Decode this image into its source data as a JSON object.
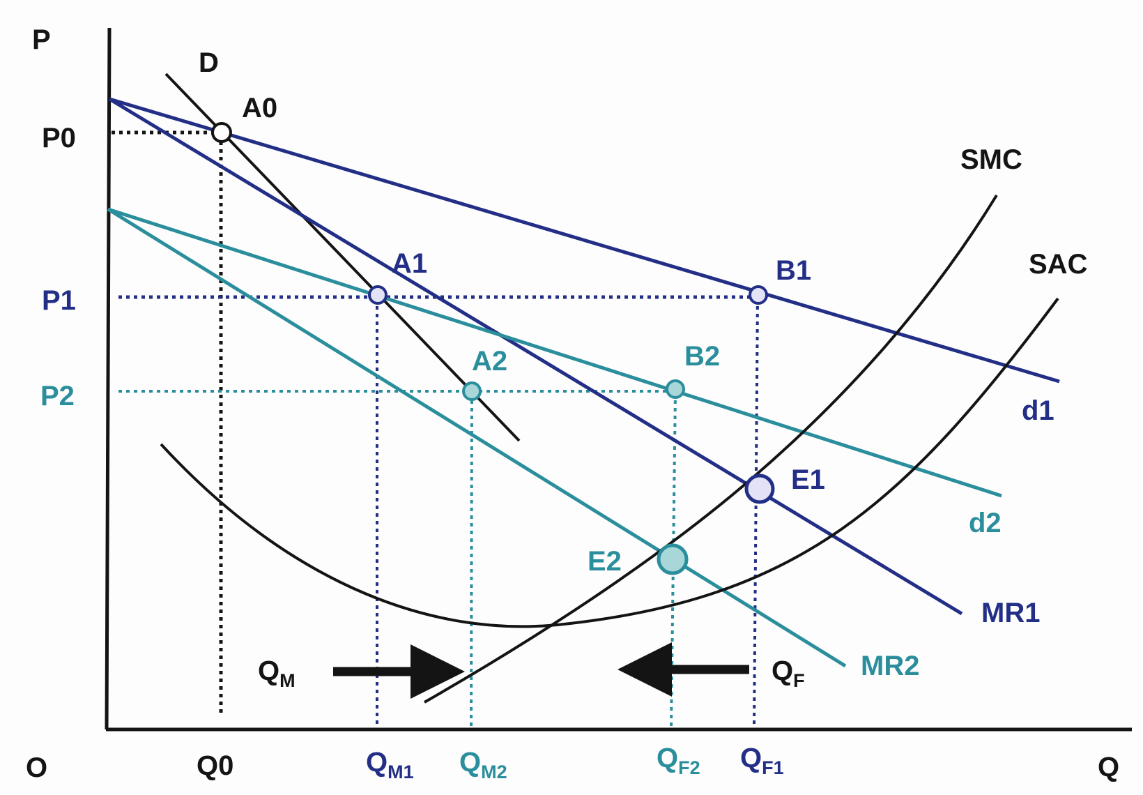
{
  "colors": {
    "black": "#141414",
    "navy": "#232f86",
    "teal": "#2b8e9c",
    "navy_fill": "#e3e2f6",
    "teal_fill": "#a9d6d8"
  },
  "axes": {
    "y_label": "P",
    "x_label": "Q",
    "origin_label": "O"
  },
  "price_labels": {
    "p0": "P0",
    "p1": "P1",
    "p2": "P2"
  },
  "quantity_labels": {
    "q0": "Q0",
    "qm1": {
      "main": "Q",
      "sub": "M1"
    },
    "qm2": {
      "main": "Q",
      "sub": "M2"
    },
    "qf2": {
      "main": "Q",
      "sub": "F2"
    },
    "qf1": {
      "main": "Q",
      "sub": "F1"
    }
  },
  "curve_labels": {
    "d": "D",
    "smc": "SMC",
    "sac": "SAC",
    "d1": "d1",
    "d2": "d2",
    "mr1": "MR1",
    "mr2": "MR2"
  },
  "point_labels": {
    "a0": "A0",
    "a1": "A1",
    "a2": "A2",
    "b1": "B1",
    "b2": "B2",
    "e1": "E1",
    "e2": "E2"
  },
  "arrow_labels": {
    "qm": {
      "main": "Q",
      "sub": "M"
    },
    "qf": {
      "main": "Q",
      "sub": "F"
    }
  }
}
